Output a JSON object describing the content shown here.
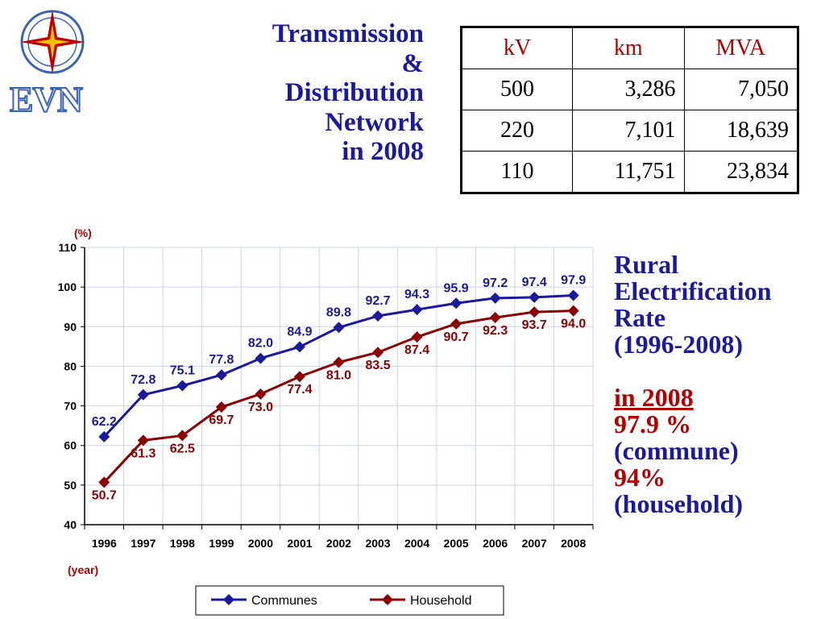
{
  "logo": {
    "text": "EVN"
  },
  "title": {
    "lines": [
      "Transmission",
      "&",
      "Distribution",
      "Network",
      "in 2008"
    ]
  },
  "network_table": {
    "headers": [
      "kV",
      "km",
      "MVA"
    ],
    "rows": [
      [
        "500",
        "3,286",
        "7,050"
      ],
      [
        "220",
        "7,101",
        "18,639"
      ],
      [
        "110",
        "11,751",
        "23,834"
      ]
    ]
  },
  "side": {
    "heading": [
      "Rural",
      "Electrification",
      "Rate",
      "(1996-2008)"
    ],
    "year": "in 2008",
    "commune_value": "97.9 %",
    "commune_label": "(commune)",
    "household_value": "94%",
    "household_label": "(household)"
  },
  "colors": {
    "title": "#1a1a9a",
    "accent": "#b00000",
    "communes": "#1a1a9a",
    "household": "#8b0000"
  },
  "chart_data": {
    "type": "line",
    "x": [
      "1996",
      "1997",
      "1998",
      "1999",
      "2000",
      "2001",
      "2002",
      "2003",
      "2004",
      "2005",
      "2006",
      "2007",
      "2008"
    ],
    "ylim": [
      40,
      110
    ],
    "yticks": [
      40,
      50,
      60,
      70,
      80,
      90,
      100,
      110
    ],
    "ylabel": "(%)",
    "xlabel": "(year)",
    "grid": true,
    "legend": "bottom",
    "series": [
      {
        "name": "Communes",
        "values": [
          62.2,
          72.8,
          75.1,
          77.8,
          82.0,
          84.9,
          89.8,
          92.7,
          94.3,
          95.9,
          97.2,
          97.4,
          97.9
        ],
        "labels": [
          "62.2",
          "72.8",
          "75.1",
          "77.8",
          "82.0",
          "84.9",
          "89.8",
          "92.7",
          "94.3",
          "95.9",
          "97.2",
          "97.4",
          "97.9"
        ]
      },
      {
        "name": "Household",
        "values": [
          50.7,
          61.3,
          62.5,
          69.7,
          73.0,
          77.4,
          81.0,
          83.5,
          87.4,
          90.7,
          92.3,
          93.7,
          94.0
        ],
        "labels": [
          "50.7",
          "61.3",
          "62.5",
          "69.7",
          "73.0",
          "77.4",
          "81.0",
          "83.5",
          "87.4",
          "90.7",
          "92.3",
          "93.7",
          "94.0"
        ]
      }
    ]
  }
}
